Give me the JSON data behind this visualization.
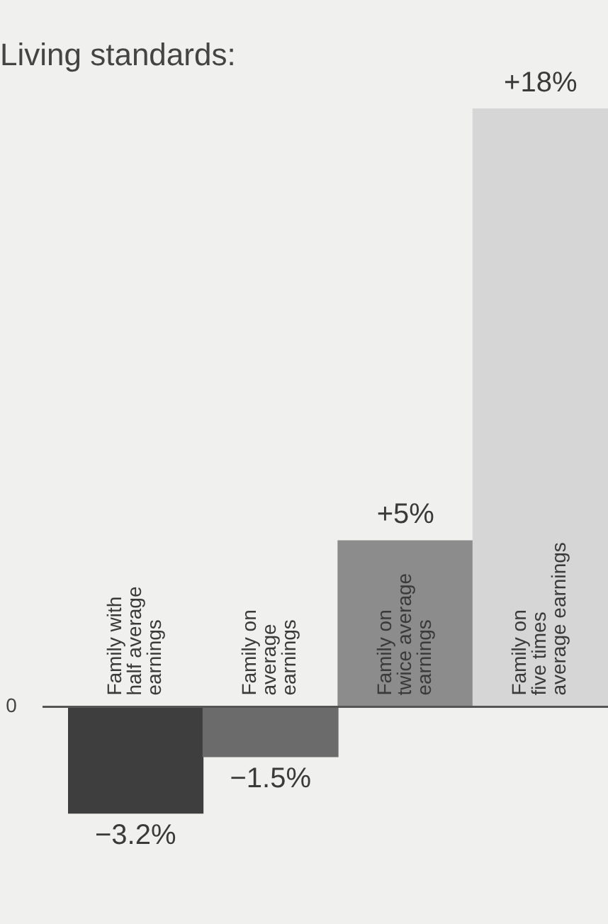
{
  "chart_data": {
    "type": "bar",
    "title": "Living standards:",
    "categories": [
      "Family with\nhalf average\nearnings",
      "Family on\naverage\nearnings",
      "Family on\ntwice average\nearnings",
      "Family on\nfive times\naverage earnings"
    ],
    "values": [
      -3.2,
      -1.5,
      5,
      18
    ],
    "colors": [
      "#3e3e3e",
      "#6b6b6b",
      "#8c8c8c",
      "#d6d6d6"
    ],
    "value_labels": [
      "−3.2%",
      "−1.5%",
      "+5%",
      "+18%"
    ],
    "annotations": [
      "0"
    ]
  }
}
